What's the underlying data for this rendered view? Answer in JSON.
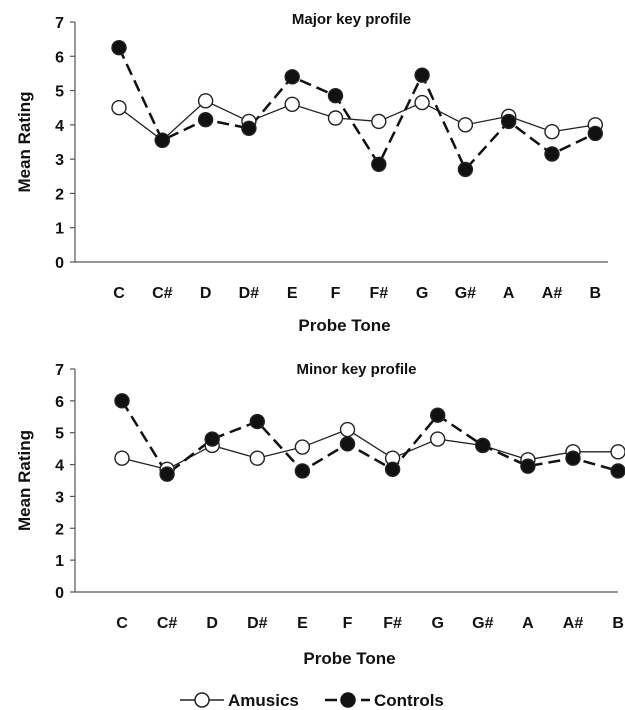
{
  "legend": {
    "amusics": "Amusics",
    "controls": "Controls"
  },
  "chart_data": [
    {
      "type": "line",
      "title": "Major key profile",
      "xlabel": "Probe Tone",
      "ylabel": "Mean Rating",
      "ylim": [
        0,
        7
      ],
      "yticks": [
        "0",
        "1",
        "2",
        "3",
        "4",
        "5",
        "6",
        "7"
      ],
      "categories": [
        "C",
        "C#",
        "D",
        "D#",
        "E",
        "F",
        "F#",
        "G",
        "G#",
        "A",
        "A#",
        "B"
      ],
      "series": [
        {
          "name": "Amusics",
          "values": [
            4.5,
            3.55,
            4.7,
            4.1,
            4.6,
            4.2,
            4.1,
            4.65,
            4.0,
            4.25,
            3.8,
            4.0
          ]
        },
        {
          "name": "Controls",
          "values": [
            6.25,
            3.55,
            4.15,
            3.9,
            5.4,
            4.85,
            2.85,
            5.45,
            2.7,
            4.1,
            3.15,
            3.75
          ]
        }
      ]
    },
    {
      "type": "line",
      "title": "Minor key profile",
      "xlabel": "Probe Tone",
      "ylabel": "Mean Rating",
      "ylim": [
        0,
        7
      ],
      "yticks": [
        "0",
        "1",
        "2",
        "3",
        "4",
        "5",
        "6",
        "7"
      ],
      "categories": [
        "C",
        "C#",
        "D",
        "D#",
        "E",
        "F",
        "F#",
        "G",
        "G#",
        "A",
        "A#",
        "B"
      ],
      "series": [
        {
          "name": "Amusics",
          "values": [
            4.2,
            3.85,
            4.6,
            4.2,
            4.55,
            5.1,
            4.2,
            4.8,
            4.6,
            4.15,
            4.4,
            4.4
          ]
        },
        {
          "name": "Controls",
          "values": [
            6.0,
            3.7,
            4.8,
            5.35,
            3.8,
            4.65,
            3.85,
            5.55,
            4.6,
            3.95,
            4.2,
            3.8
          ]
        }
      ]
    }
  ]
}
